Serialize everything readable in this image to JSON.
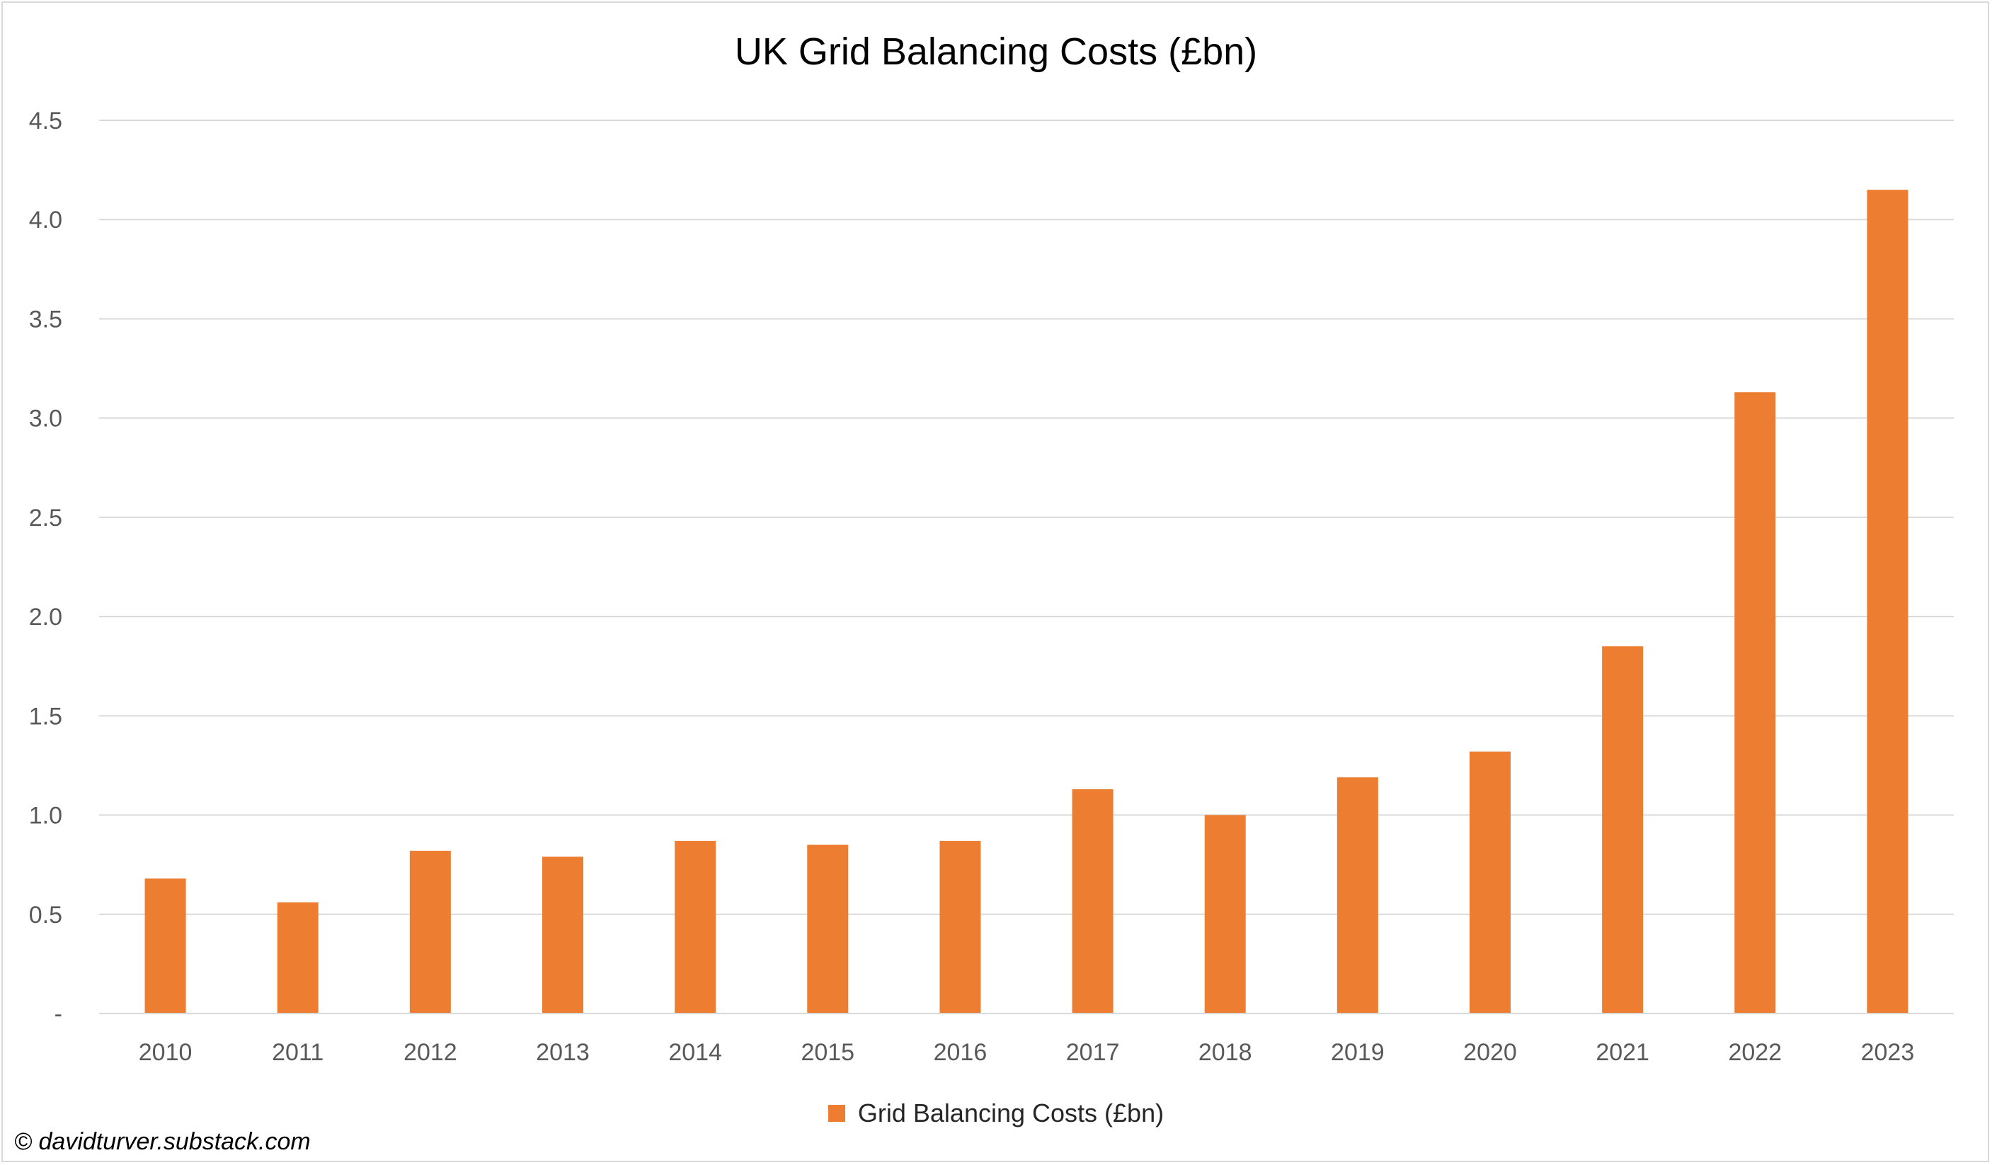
{
  "chart_data": {
    "type": "bar",
    "title": "UK Grid Balancing Costs (£bn)",
    "xlabel": "",
    "ylabel": "",
    "ylim": [
      0,
      4.5
    ],
    "yticks": [
      {
        "value": 0,
        "label": "-"
      },
      {
        "value": 0.5,
        "label": "0.5"
      },
      {
        "value": 1.0,
        "label": "1.0"
      },
      {
        "value": 1.5,
        "label": "1.5"
      },
      {
        "value": 2.0,
        "label": "2.0"
      },
      {
        "value": 2.5,
        "label": "2.5"
      },
      {
        "value": 3.0,
        "label": "3.0"
      },
      {
        "value": 3.5,
        "label": "3.5"
      },
      {
        "value": 4.0,
        "label": "4.0"
      },
      {
        "value": 4.5,
        "label": "4.5"
      }
    ],
    "grid": true,
    "legend_position": "bottom",
    "categories": [
      "2010",
      "2011",
      "2012",
      "2013",
      "2014",
      "2015",
      "2016",
      "2017",
      "2018",
      "2019",
      "2020",
      "2021",
      "2022",
      "2023"
    ],
    "series": [
      {
        "name": "Grid Balancing Costs (£bn)",
        "color": "#ed7d31",
        "values": [
          0.68,
          0.56,
          0.82,
          0.79,
          0.87,
          0.85,
          0.87,
          1.13,
          1.0,
          1.19,
          1.32,
          1.85,
          3.13,
          4.15
        ]
      }
    ]
  },
  "watermark": "© davidturver.substack.com"
}
